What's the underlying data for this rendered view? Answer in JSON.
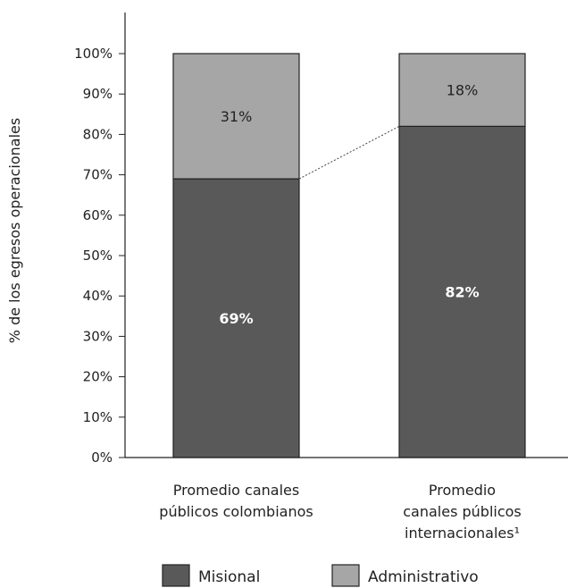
{
  "chart_data": {
    "type": "bar",
    "stacked": true,
    "categories": [
      [
        "Promedio canales",
        "públicos colombianos"
      ],
      [
        "Promedio",
        "canales públicos",
        "internacionales¹"
      ]
    ],
    "series": [
      {
        "name": "Misional",
        "values": [
          69,
          82
        ],
        "labels": [
          "69%",
          "82%"
        ],
        "color": "#595959",
        "label_color": "#ffffff"
      },
      {
        "name": "Administrativo",
        "values": [
          31,
          18
        ],
        "labels": [
          "31%",
          "18%"
        ],
        "color": "#a6a6a6",
        "label_color": "#222222"
      }
    ],
    "ylabel": "% de los egresos operacionales",
    "ylim": [
      0,
      100
    ],
    "yticks": [
      0,
      10,
      20,
      30,
      40,
      50,
      60,
      70,
      80,
      90,
      100
    ],
    "ytick_labels": [
      "0%",
      "10%",
      "20%",
      "30%",
      "40%",
      "50%",
      "60%",
      "70%",
      "80%",
      "90%",
      "100%"
    ],
    "connector": {
      "from_category": 0,
      "to_category": 1,
      "value_series": 0,
      "style": "dotted"
    },
    "grid": false,
    "legend_position": "bottom"
  }
}
